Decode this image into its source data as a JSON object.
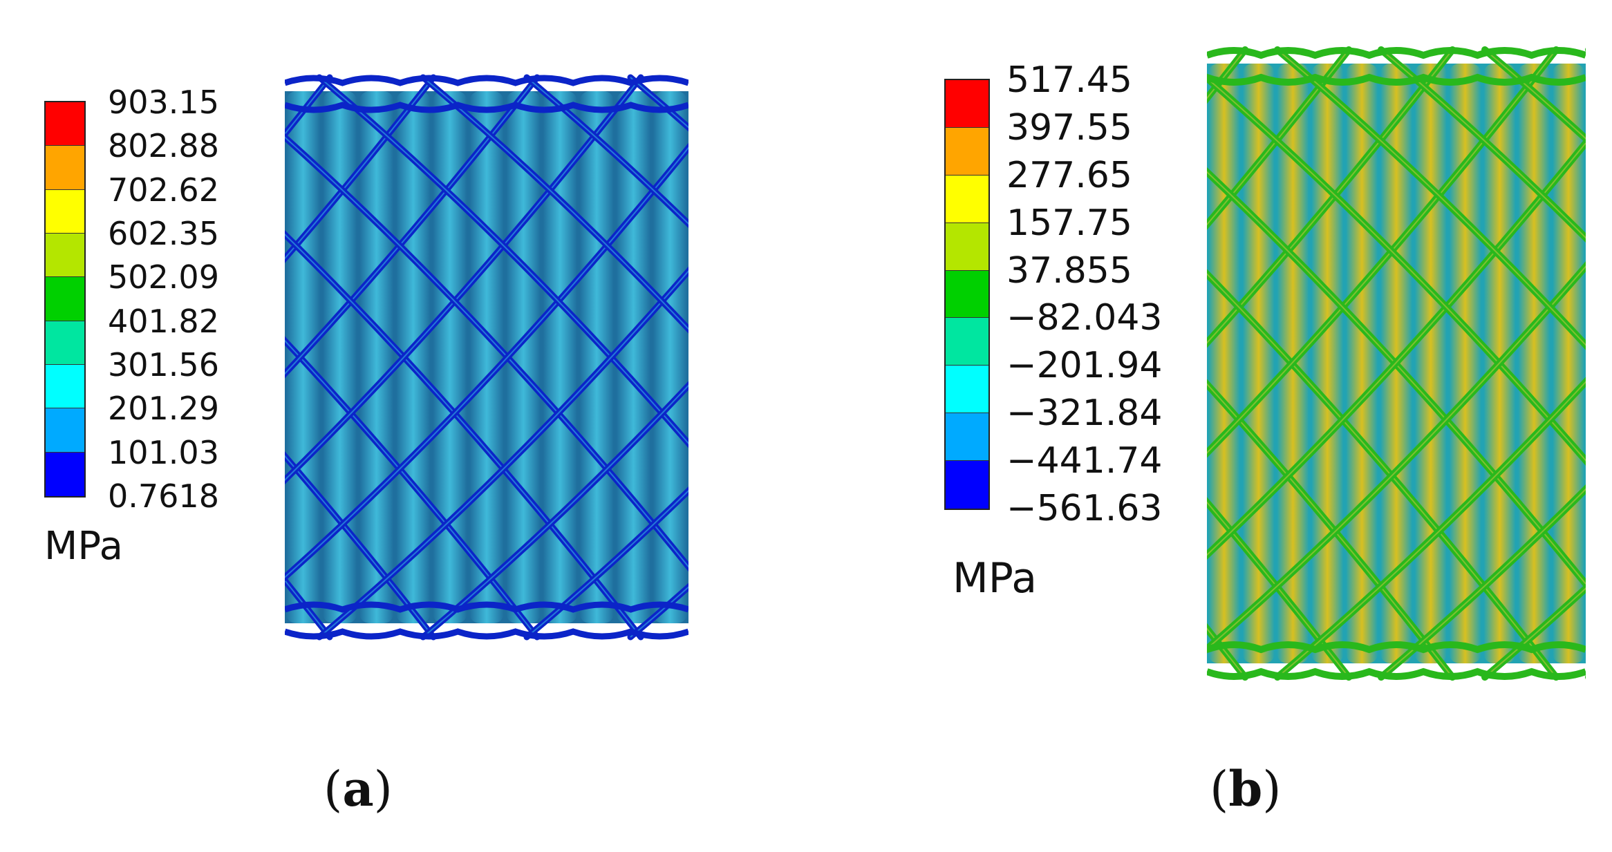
{
  "panels": [
    {
      "id": "a",
      "caption": "a",
      "unit": "MPa",
      "legend_values": [
        "903.15",
        "802.88",
        "702.62",
        "602.35",
        "502.09",
        "401.82",
        "301.56",
        "201.29",
        "101.03",
        "0.7618"
      ],
      "legend_colors": [
        "#ff0000",
        "#ffa500",
        "#ffff00",
        "#b4e600",
        "#00d000",
        "#00e6a0",
        "#00ffff",
        "#00aaff",
        "#0000ff"
      ],
      "tube_color_light": "#3fb9d9",
      "tube_color_dark": "#1f6f9e",
      "strut_color": "#0b24c8",
      "strut_highlight": "#2f9ee0"
    },
    {
      "id": "b",
      "caption": "b",
      "unit": "MPa",
      "legend_values": [
        "517.45",
        "397.55",
        "277.65",
        "157.75",
        "37.855",
        "−82.043",
        "−201.94",
        "−321.84",
        "−441.74",
        "−561.63"
      ],
      "legend_colors": [
        "#ff0000",
        "#ffa500",
        "#ffff00",
        "#b4e600",
        "#00d000",
        "#00e6a0",
        "#00ffff",
        "#00aaff",
        "#0000ff"
      ],
      "tube_color_light": "#d8c020",
      "tube_color_dark": "#22a3b3",
      "strut_color": "#29b81c",
      "strut_highlight": "#a5c43a"
    }
  ]
}
